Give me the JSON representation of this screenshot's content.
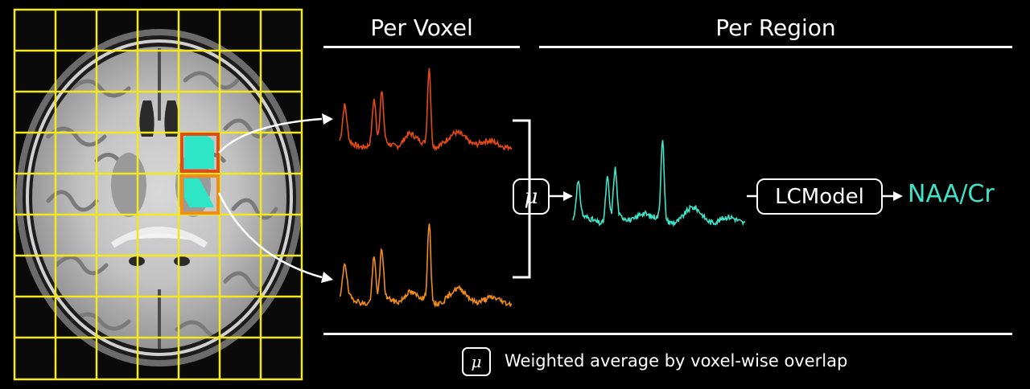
{
  "headings": {
    "per_voxel": "Per Voxel",
    "per_region": "Per Region"
  },
  "operators": {
    "mu_symbol": "μ",
    "model_label": "LCModel",
    "result_label": "NAA/Cr"
  },
  "legend": {
    "symbol": "μ",
    "text": "Weighted average by voxel-wise overlap"
  },
  "colors": {
    "grid": "#f3e81e",
    "voxel_top": "#e24a16",
    "voxel_bottom": "#f08c1a",
    "region": "#3fe3c8",
    "region_fill": "#2ee6c5",
    "line": "#ffffff"
  },
  "images": {
    "brain": "axial-brain-mri-slice"
  }
}
